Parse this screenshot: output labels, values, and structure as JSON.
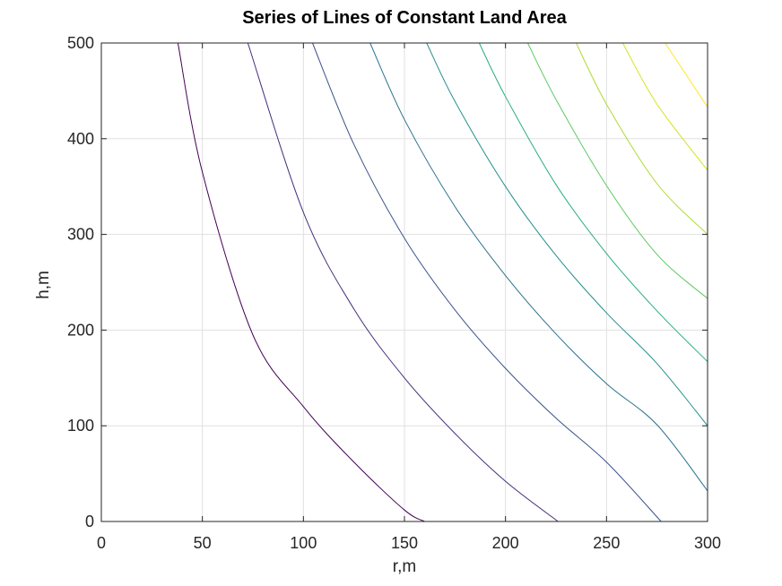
{
  "chart_data": {
    "type": "line",
    "title": "Series of Lines of Constant Land Area",
    "xlabel": "r,m",
    "ylabel": "h,m",
    "xlim": [
      0,
      300
    ],
    "ylim": [
      0,
      500
    ],
    "xticks": [
      0,
      50,
      100,
      150,
      200,
      250,
      300
    ],
    "yticks": [
      0,
      100,
      200,
      300,
      400,
      500
    ],
    "xtick_labels": [
      "0",
      "50",
      "100",
      "150",
      "200",
      "250",
      "300"
    ],
    "ytick_labels": [
      "0",
      "100",
      "200",
      "300",
      "400",
      "500"
    ],
    "grid": true,
    "colormap": "viridis",
    "series": [
      {
        "color": "#440154",
        "x": [
          37.9,
          50,
          75,
          100,
          125,
          150,
          160
        ],
        "y": [
          500,
          365,
          195,
          120,
          62,
          12,
          0
        ]
      },
      {
        "color": "#472d7b",
        "x": [
          72.5,
          100,
          125,
          150,
          175,
          200,
          226
        ],
        "y": [
          500,
          323,
          222,
          150,
          92,
          42,
          0
        ]
      },
      {
        "color": "#3b528b",
        "x": [
          104.5,
          125,
          150,
          175,
          200,
          225,
          250,
          277
        ],
        "y": [
          500,
          394,
          296,
          221,
          160,
          108,
          62,
          0
        ]
      },
      {
        "color": "#2c728e",
        "x": [
          133,
          150,
          175,
          200,
          225,
          250,
          275,
          300
        ],
        "y": [
          500,
          420,
          329,
          257,
          196,
          144,
          101,
          32
        ]
      },
      {
        "color": "#21918c",
        "x": [
          161,
          175,
          200,
          225,
          250,
          275,
          300
        ],
        "y": [
          500,
          439,
          350,
          278,
          218,
          165,
          100
        ]
      },
      {
        "color": "#28ae80",
        "x": [
          187,
          200,
          225,
          250,
          275,
          300
        ],
        "y": [
          500,
          444,
          352,
          280,
          220,
          167
        ]
      },
      {
        "color": "#5ec962",
        "x": [
          211,
          225,
          250,
          275,
          300
        ],
        "y": [
          500,
          441,
          351,
          279,
          233
        ]
      },
      {
        "color": "#addc30",
        "x": [
          235,
          250,
          275,
          300
        ],
        "y": [
          500,
          436,
          353,
          300
        ]
      },
      {
        "color": "#d5e21a",
        "x": [
          258,
          275,
          300
        ],
        "y": [
          500,
          436,
          367
        ]
      },
      {
        "color": "#fde725",
        "x": [
          279,
          290,
          300
        ],
        "y": [
          500,
          465,
          433
        ]
      }
    ]
  }
}
